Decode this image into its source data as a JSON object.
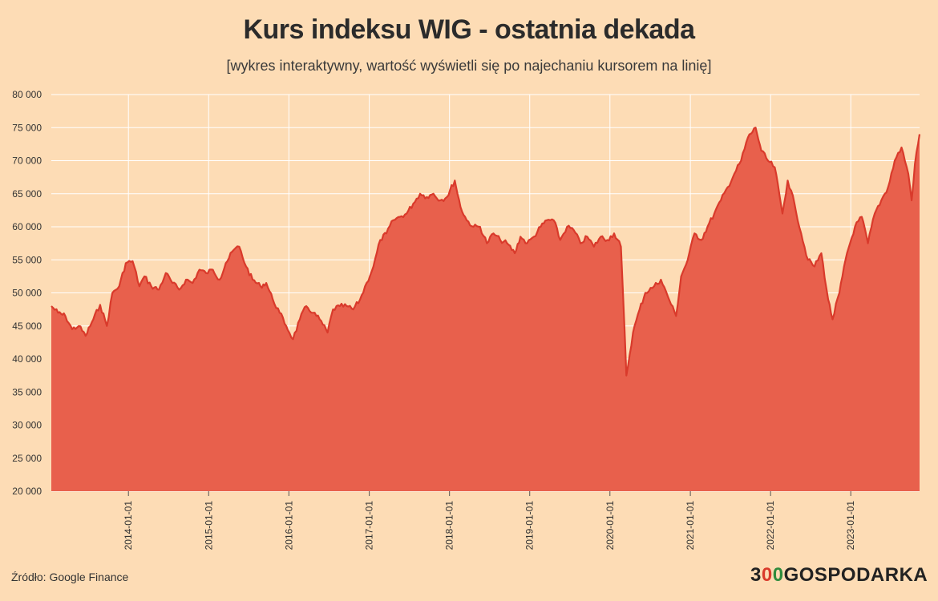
{
  "chart_data": {
    "type": "area",
    "title": "Kurs indeksu WIG - ostatnia dekada",
    "subtitle": "[wykres interaktywny, wartość wyświetli się po najechaniu kursorem na linię]",
    "xlabel": "",
    "ylabel": "",
    "ylim": [
      20000,
      80000
    ],
    "yticks": [
      20000,
      25000,
      30000,
      35000,
      40000,
      45000,
      50000,
      55000,
      60000,
      65000,
      70000,
      75000,
      80000
    ],
    "ytick_labels": [
      "20 000",
      "25 000",
      "30 000",
      "35 000",
      "40 000",
      "45 000",
      "50 000",
      "55 000",
      "60 000",
      "65 000",
      "70 000",
      "75 000",
      "80 000"
    ],
    "xticks": [
      "2014-01-01",
      "2015-01-01",
      "2016-01-01",
      "2017-01-01",
      "2018-01-01",
      "2019-01-01",
      "2020-01-01",
      "2021-01-01",
      "2022-01-01",
      "2023-01-01"
    ],
    "xlim": [
      "2013-01-15",
      "2023-11-10"
    ],
    "grid": true,
    "fill_color": "#e8604c",
    "line_color": "#d93a2b",
    "grid_color": "#ffffff",
    "series": [
      {
        "x": [
          "2013-01-15",
          "2013-02-15",
          "2013-03-20",
          "2013-04-20",
          "2013-05-20",
          "2013-06-20",
          "2013-07-25",
          "2013-08-25",
          "2013-09-25",
          "2013-10-20",
          "2013-11-20",
          "2013-12-20",
          "2014-01-20",
          "2014-02-20",
          "2014-03-15",
          "2014-04-15",
          "2014-05-20",
          "2014-06-20",
          "2014-07-20",
          "2014-08-20",
          "2014-09-20",
          "2014-10-20",
          "2014-11-20",
          "2014-12-20",
          "2015-01-20",
          "2015-02-20",
          "2015-03-20",
          "2015-04-25",
          "2015-05-20",
          "2015-06-20",
          "2015-07-20",
          "2015-08-25",
          "2015-09-20",
          "2015-10-20",
          "2015-11-20",
          "2015-12-20",
          "2016-01-20",
          "2016-02-20",
          "2016-03-20",
          "2016-04-20",
          "2016-05-20",
          "2016-06-25",
          "2016-07-20",
          "2016-08-20",
          "2016-09-20",
          "2016-10-20",
          "2016-11-20",
          "2016-12-20",
          "2017-01-20",
          "2017-02-20",
          "2017-03-20",
          "2017-04-20",
          "2017-05-20",
          "2017-06-20",
          "2017-07-20",
          "2017-08-20",
          "2017-09-20",
          "2017-10-20",
          "2017-11-20",
          "2017-12-20",
          "2018-01-25",
          "2018-02-20",
          "2018-03-20",
          "2018-04-20",
          "2018-05-20",
          "2018-06-20",
          "2018-07-20",
          "2018-08-20",
          "2018-09-20",
          "2018-10-25",
          "2018-11-20",
          "2018-12-20",
          "2019-01-20",
          "2019-02-20",
          "2019-03-20",
          "2019-04-20",
          "2019-05-20",
          "2019-06-20",
          "2019-07-20",
          "2019-08-20",
          "2019-09-20",
          "2019-10-20",
          "2019-11-20",
          "2019-12-20",
          "2020-01-20",
          "2020-02-20",
          "2020-03-16",
          "2020-04-15",
          "2020-05-15",
          "2020-06-10",
          "2020-07-20",
          "2020-08-20",
          "2020-09-20",
          "2020-10-28",
          "2020-11-20",
          "2020-12-20",
          "2021-01-20",
          "2021-02-20",
          "2021-03-20",
          "2021-04-20",
          "2021-05-20",
          "2021-06-20",
          "2021-07-20",
          "2021-08-20",
          "2021-09-20",
          "2021-10-25",
          "2021-11-20",
          "2021-12-20",
          "2022-01-20",
          "2022-02-24",
          "2022-03-20",
          "2022-04-20",
          "2022-05-20",
          "2022-06-20",
          "2022-07-20",
          "2022-08-20",
          "2022-09-20",
          "2022-10-10",
          "2022-11-10",
          "2022-12-15",
          "2023-01-20",
          "2023-02-20",
          "2023-03-20",
          "2023-04-20",
          "2023-05-20",
          "2023-06-20",
          "2023-07-20",
          "2023-08-20",
          "2023-09-20",
          "2023-10-05",
          "2023-10-20",
          "2023-11-10"
        ],
        "values": [
          48000,
          47000,
          46500,
          44500,
          45000,
          43500,
          46000,
          48200,
          45000,
          50000,
          51000,
          54500,
          54800,
          51000,
          52500,
          51000,
          50500,
          53000,
          51500,
          50500,
          52000,
          51500,
          53500,
          53000,
          53500,
          52000,
          54500,
          56500,
          57000,
          54000,
          52000,
          51000,
          51500,
          49000,
          47000,
          45000,
          43000,
          46000,
          48000,
          47000,
          46000,
          44000,
          47500,
          48000,
          48000,
          47500,
          49000,
          51500,
          54000,
          58000,
          59000,
          61000,
          61500,
          62000,
          63500,
          65000,
          64500,
          65000,
          64000,
          64500,
          67000,
          63000,
          61000,
          60000,
          60000,
          57500,
          59000,
          58000,
          57500,
          56000,
          58500,
          57500,
          58500,
          60000,
          61000,
          61000,
          58000,
          60000,
          59500,
          57500,
          58500,
          57000,
          58500,
          58000,
          59000,
          57000,
          37500,
          44000,
          47500,
          50000,
          51000,
          52000,
          49500,
          46500,
          52500,
          55000,
          59000,
          58000,
          60000,
          62000,
          64000,
          66000,
          68000,
          70000,
          73500,
          75000,
          71500,
          70000,
          69000,
          62000,
          67000,
          63500,
          59000,
          55000,
          54000,
          56000,
          49000,
          46000,
          50000,
          56000,
          60000,
          61500,
          57500,
          62000,
          64000,
          66000,
          70000,
          72000,
          68000,
          64000,
          69500,
          74000
        ]
      }
    ],
    "source_label": "Źródło: Google Finance"
  },
  "logo": {
    "part1": "3",
    "part2": "0",
    "part3": "0",
    "part4": "GOSPODARKA"
  }
}
